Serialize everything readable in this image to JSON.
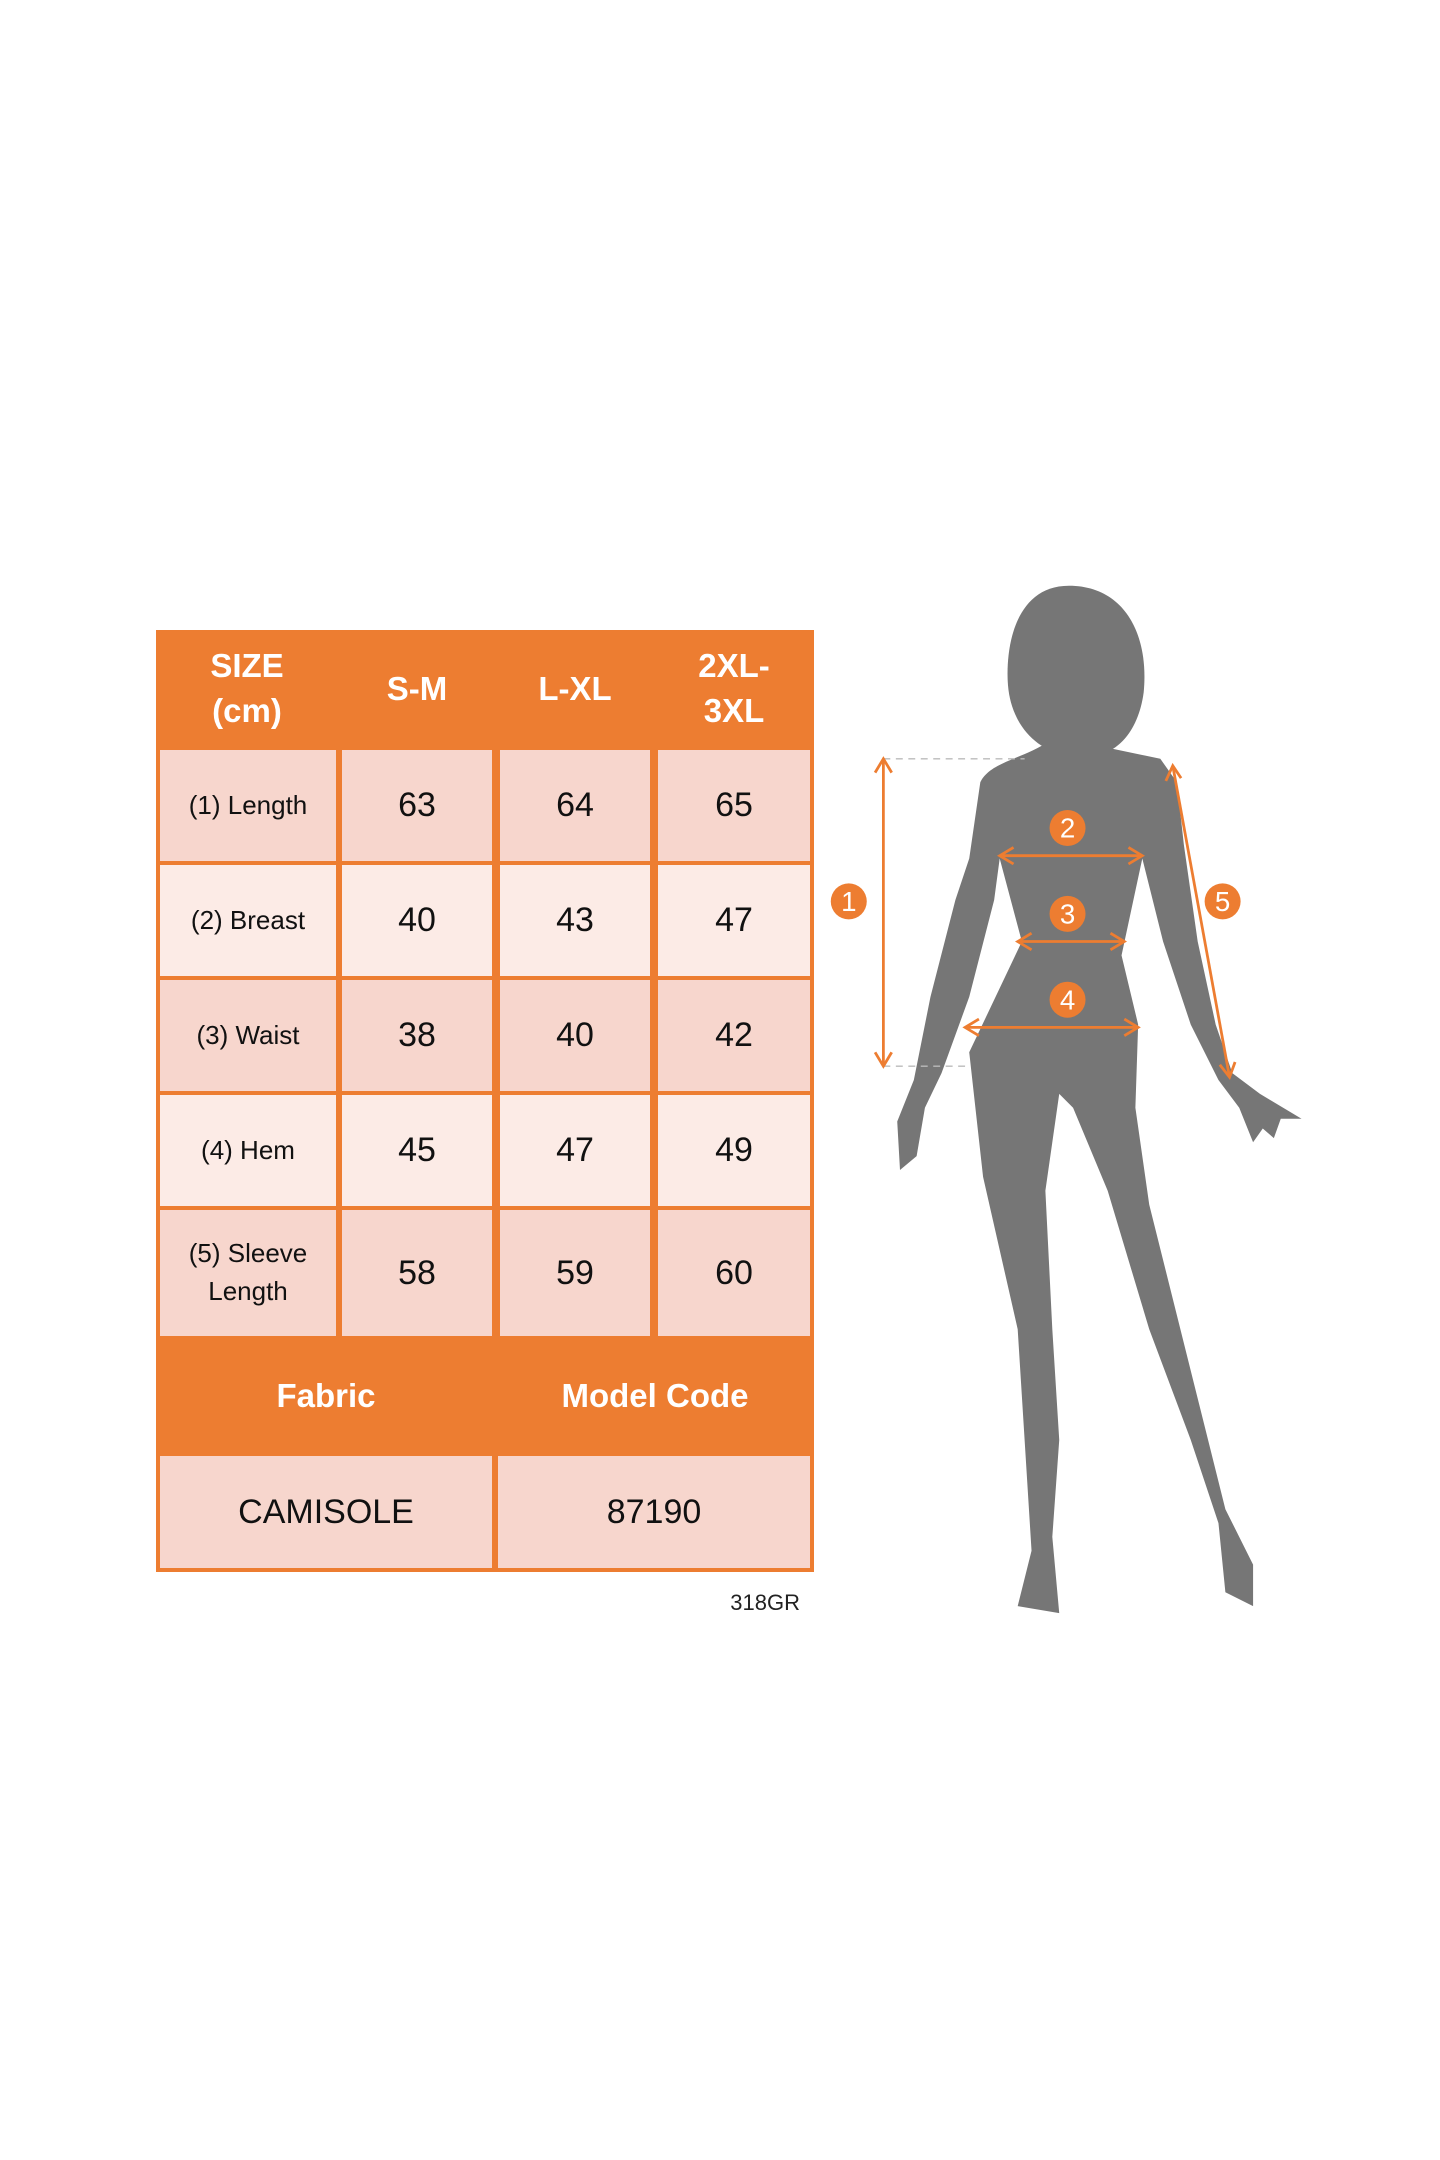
{
  "size_table": {
    "headers": [
      "SIZE (cm)",
      "S-M",
      "L-XL",
      "2XL- 3XL"
    ],
    "header_lines": [
      [
        "SIZE",
        "(cm)"
      ],
      [
        "S-M"
      ],
      [
        "L-XL"
      ],
      [
        "2XL-",
        "3XL"
      ]
    ],
    "rows": [
      {
        "label": "(1) Length",
        "values": [
          "63",
          "64",
          "65"
        ]
      },
      {
        "label": "(2) Breast",
        "values": [
          "40",
          "43",
          "47"
        ]
      },
      {
        "label": "(3) Waist",
        "values": [
          "38",
          "40",
          "42"
        ]
      },
      {
        "label": "(4) Hem",
        "values": [
          "45",
          "47",
          "49"
        ]
      },
      {
        "label": "(5) Sleeve Length",
        "label_lines": [
          "(5) Sleeve",
          "Length"
        ],
        "values": [
          "58",
          "59",
          "60"
        ]
      }
    ],
    "info_headers": [
      "Fabric",
      "Model Code"
    ],
    "info_values": [
      "CAMISOLE",
      "87190"
    ]
  },
  "footer_code": "318GR",
  "figure": {
    "markers": [
      "1",
      "2",
      "3",
      "4",
      "5"
    ],
    "silhouette_color": "#767676"
  },
  "colors": {
    "accent": "#ED7D31",
    "cell_dark": "#F7D6CD",
    "cell_light": "#FCEBE6"
  }
}
